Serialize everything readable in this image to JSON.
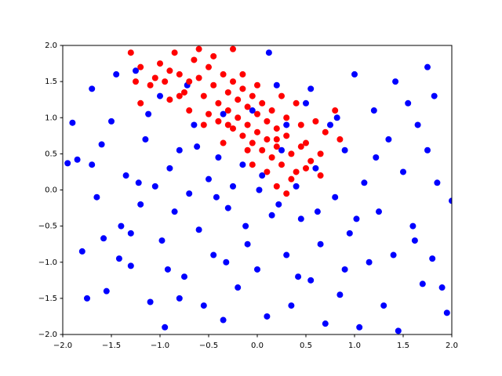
{
  "chart_data": {
    "type": "scatter",
    "xlim": [
      -2,
      2
    ],
    "ylim": [
      -2,
      2
    ],
    "xticks": [
      {
        "value": -2,
        "label": "−2.0"
      },
      {
        "value": -1.5,
        "label": "−1.5"
      },
      {
        "value": -1,
        "label": "−1.0"
      },
      {
        "value": -0.5,
        "label": "−0.5"
      },
      {
        "value": 0,
        "label": "0.0"
      },
      {
        "value": 0.5,
        "label": "0.5"
      },
      {
        "value": 1,
        "label": "1.0"
      },
      {
        "value": 1.5,
        "label": "1.5"
      },
      {
        "value": 2,
        "label": "2.0"
      }
    ],
    "yticks": [
      {
        "value": -2,
        "label": "−2.0"
      },
      {
        "value": -1.5,
        "label": "−1.5"
      },
      {
        "value": -1,
        "label": "−1.0"
      },
      {
        "value": -0.5,
        "label": "−0.5"
      },
      {
        "value": 0,
        "label": "0.0"
      },
      {
        "value": 0.5,
        "label": "0.5"
      },
      {
        "value": 1,
        "label": "1.0"
      },
      {
        "value": 1.5,
        "label": "1.5"
      },
      {
        "value": 2,
        "label": "2.0"
      }
    ],
    "series": [
      {
        "color": "#0000ff",
        "x": [
          -1.9,
          -1.85,
          -1.8,
          -1.75,
          -1.7,
          -1.65,
          -1.6,
          -1.55,
          -1.5,
          -1.45,
          -1.4,
          -1.35,
          -1.3,
          -1.25,
          -1.2,
          -1.15,
          -1.1,
          -1.05,
          -1.0,
          -0.98,
          -0.95,
          -0.9,
          -0.85,
          -0.8,
          -0.75,
          -0.7,
          -0.65,
          -0.6,
          -0.55,
          -0.5,
          -0.45,
          -0.4,
          -0.35,
          -0.3,
          -0.25,
          -0.2,
          -0.15,
          -0.1,
          -0.05,
          0.0,
          0.05,
          0.1,
          0.15,
          0.2,
          0.25,
          0.3,
          0.35,
          0.4,
          0.45,
          0.5,
          0.55,
          0.6,
          0.65,
          0.7,
          0.75,
          0.8,
          0.85,
          0.9,
          0.95,
          1.0,
          1.05,
          1.1,
          1.15,
          1.2,
          1.25,
          1.3,
          1.35,
          1.4,
          1.45,
          1.5,
          1.55,
          1.6,
          1.65,
          1.7,
          1.75,
          1.8,
          1.85,
          1.9,
          1.95,
          2.0,
          -1.95,
          -1.7,
          -1.58,
          -1.42,
          -1.22,
          -1.12,
          -0.92,
          -0.72,
          -0.62,
          -0.42,
          -0.32,
          -0.12,
          0.02,
          0.12,
          0.22,
          0.42,
          0.62,
          0.82,
          1.02,
          1.22,
          1.42,
          1.62,
          1.82,
          0.3,
          0.55,
          -0.35,
          1.75,
          0.9,
          -0.8,
          -1.3
        ],
        "values": [
          0.93,
          0.42,
          -0.85,
          -1.5,
          1.4,
          -0.1,
          0.63,
          -1.4,
          0.95,
          1.6,
          -0.5,
          0.2,
          -1.05,
          1.65,
          -0.2,
          0.7,
          -1.55,
          0.05,
          1.3,
          -0.7,
          -1.9,
          0.3,
          -0.3,
          0.55,
          -1.2,
          -0.05,
          0.9,
          -0.55,
          -1.6,
          0.15,
          -0.9,
          0.45,
          -1.8,
          -0.25,
          0.05,
          -1.35,
          0.35,
          -0.75,
          1.1,
          -1.1,
          0.2,
          -1.75,
          -0.35,
          1.45,
          0.55,
          -0.9,
          -1.6,
          0.05,
          -0.4,
          1.2,
          -1.25,
          0.3,
          -0.75,
          -1.85,
          0.9,
          -0.1,
          -1.45,
          0.55,
          -0.6,
          1.6,
          -1.9,
          0.1,
          -1.0,
          1.1,
          -0.3,
          -1.6,
          0.7,
          -0.9,
          -1.95,
          0.25,
          1.2,
          -0.5,
          0.9,
          -1.3,
          0.55,
          -0.95,
          0.1,
          -1.35,
          -1.7,
          -0.15,
          0.37,
          0.35,
          -0.67,
          -0.95,
          0.1,
          1.05,
          -1.1,
          1.45,
          0.6,
          -0.1,
          -1.0,
          -0.5,
          0.0,
          1.9,
          -0.2,
          -1.2,
          -0.3,
          1.0,
          -0.4,
          0.45,
          1.5,
          -0.7,
          1.3,
          0.9,
          1.4,
          1.05,
          1.7,
          -1.1,
          -1.5,
          -0.6
        ]
      },
      {
        "color": "#ff0000",
        "x": [
          -1.3,
          -1.2,
          -1.1,
          -1.0,
          -0.95,
          -0.9,
          -0.85,
          -0.8,
          -0.75,
          -0.7,
          -0.65,
          -0.6,
          -0.55,
          -0.5,
          -0.5,
          -0.45,
          -0.4,
          -0.4,
          -0.35,
          -0.3,
          -0.3,
          -0.25,
          -0.25,
          -0.2,
          -0.2,
          -0.15,
          -0.15,
          -0.1,
          -0.1,
          -0.05,
          -0.05,
          0.0,
          0.0,
          0.05,
          0.05,
          0.1,
          0.1,
          0.15,
          0.15,
          0.2,
          0.2,
          0.25,
          0.3,
          0.3,
          0.35,
          0.4,
          0.45,
          0.5,
          0.55,
          0.65,
          0.7,
          0.8,
          0.85,
          0.2,
          0.3,
          -0.6,
          -1.2,
          -1.25,
          -0.25,
          -0.55,
          -0.35,
          -0.05,
          0.1,
          0.4,
          0.6,
          -0.7,
          -0.45,
          -0.15,
          0.0,
          -0.8,
          -0.9,
          0.25,
          0.35,
          0.5,
          -1.05,
          -0.3,
          -0.1,
          0.2,
          0.45,
          0.65
        ],
        "values": [
          1.9,
          1.7,
          1.45,
          1.75,
          1.5,
          1.25,
          1.9,
          1.6,
          1.35,
          1.1,
          1.8,
          1.55,
          1.3,
          1.05,
          1.7,
          1.45,
          1.2,
          0.95,
          1.6,
          1.35,
          1.1,
          0.85,
          1.5,
          1.25,
          1.0,
          0.75,
          1.4,
          1.15,
          0.9,
          0.65,
          1.3,
          1.05,
          0.8,
          0.55,
          1.2,
          0.95,
          0.7,
          0.45,
          1.1,
          0.85,
          0.6,
          0.35,
          1.0,
          0.75,
          0.5,
          0.25,
          0.9,
          0.65,
          0.4,
          0.2,
          0.8,
          1.1,
          0.7,
          0.05,
          -0.05,
          1.95,
          1.2,
          1.5,
          1.95,
          0.9,
          0.65,
          0.35,
          0.25,
          1.2,
          0.95,
          1.5,
          1.85,
          1.6,
          1.45,
          1.3,
          1.65,
          1.3,
          0.15,
          0.3,
          1.55,
          0.9,
          0.55,
          0.7,
          0.6,
          0.5
        ]
      }
    ]
  }
}
